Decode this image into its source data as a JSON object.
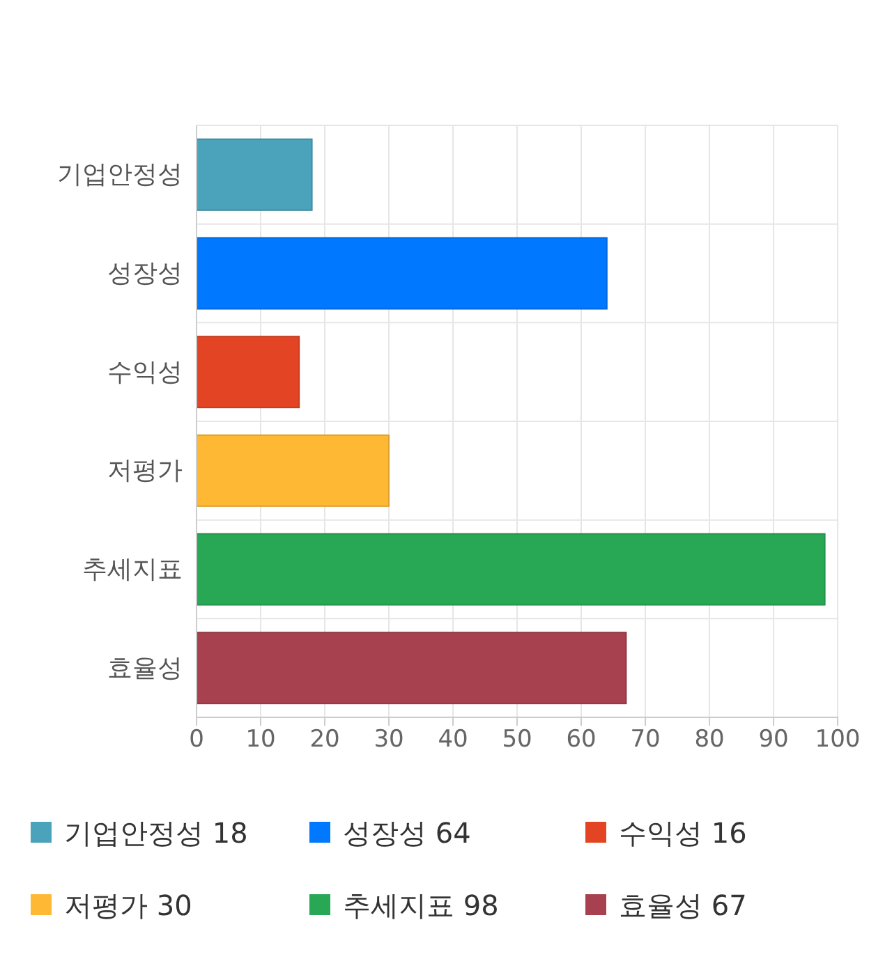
{
  "chart_data": {
    "type": "bar",
    "orientation": "horizontal",
    "stacked": true,
    "categories": [
      "기업안정성",
      "성장성",
      "수익성",
      "저평가",
      "추세지표",
      "효율성"
    ],
    "series": [
      {
        "name": "기업안정성 18",
        "color": "#4aa3bb",
        "values": [
          18,
          null,
          null,
          null,
          null,
          null
        ]
      },
      {
        "name": "성장성 64",
        "color": "#0078ff",
        "values": [
          null,
          64,
          null,
          null,
          null,
          null
        ]
      },
      {
        "name": "수익성 16",
        "color": "#e34524",
        "values": [
          null,
          null,
          16,
          null,
          null,
          null
        ]
      },
      {
        "name": "저평가 30",
        "color": "#ffb833",
        "values": [
          null,
          null,
          null,
          30,
          null,
          null
        ]
      },
      {
        "name": "추세지표 98",
        "color": "#28a754",
        "values": [
          null,
          null,
          null,
          null,
          98,
          null
        ]
      },
      {
        "name": "효율성 67",
        "color": "#a8414f",
        "values": [
          null,
          null,
          null,
          null,
          null,
          67
        ]
      }
    ],
    "xlim": [
      0,
      100
    ],
    "xticks": [
      0,
      10,
      20,
      30,
      40,
      50,
      60,
      70,
      80,
      90,
      100
    ],
    "grid": true,
    "legend": "bottom"
  }
}
